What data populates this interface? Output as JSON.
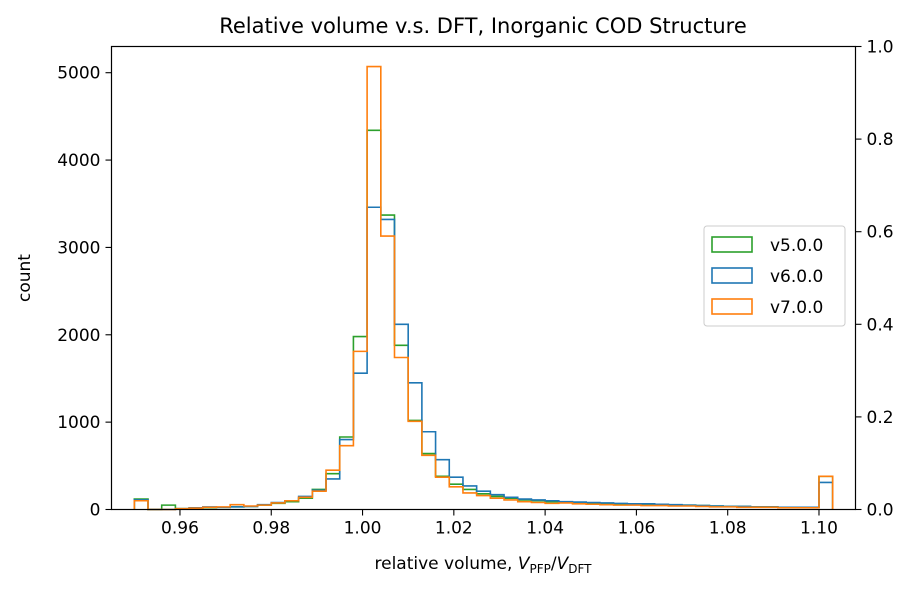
{
  "chart_data": {
    "type": "histogram-step",
    "title": "Relative volume v.s. DFT, Inorganic COD Structure",
    "xlabel": {
      "prefix": "relative volume, ",
      "v1": "V",
      "s1": "PFP",
      "slash": "/",
      "v2": "V",
      "s2": "DFT"
    },
    "ylabel": "count",
    "xlim": [
      0.945,
      1.108
    ],
    "ylim": [
      0,
      5300
    ],
    "y2lim": [
      0,
      1.0
    ],
    "xticks": [
      0.96,
      0.98,
      1.0,
      1.02,
      1.04,
      1.06,
      1.08,
      1.1
    ],
    "xtick_labels": [
      "0.96",
      "0.98",
      "1.00",
      "1.02",
      "1.04",
      "1.06",
      "1.08",
      "1.10"
    ],
    "yticks": [
      0,
      1000,
      2000,
      3000,
      4000,
      5000
    ],
    "ytick_labels": [
      "0",
      "1000",
      "2000",
      "3000",
      "4000",
      "5000"
    ],
    "y2ticks": [
      0,
      0.2,
      0.4,
      0.6,
      0.8,
      1.0
    ],
    "y2tick_labels": [
      "0.0",
      "0.2",
      "0.4",
      "0.6",
      "0.8",
      "1.0"
    ],
    "bin_start": 0.95,
    "bin_width": 0.003,
    "series": [
      {
        "name": "v5.0.0",
        "color": "#2ca02c",
        "values": [
          120,
          0,
          50,
          10,
          15,
          20,
          25,
          30,
          35,
          50,
          70,
          90,
          130,
          230,
          410,
          830,
          1980,
          4340,
          3370,
          1880,
          1020,
          640,
          380,
          290,
          230,
          180,
          150,
          130,
          110,
          100,
          90,
          80,
          70,
          65,
          60,
          60,
          55,
          55,
          55,
          50,
          50,
          45,
          40,
          35,
          35,
          30,
          30,
          25,
          25,
          25,
          380
        ]
      },
      {
        "name": "v6.0.0",
        "color": "#1f77b4",
        "values": [
          110,
          0,
          0,
          10,
          20,
          30,
          25,
          30,
          35,
          55,
          80,
          100,
          150,
          220,
          350,
          800,
          1560,
          3460,
          3320,
          2120,
          1450,
          890,
          570,
          370,
          270,
          210,
          170,
          140,
          120,
          110,
          100,
          90,
          85,
          80,
          75,
          70,
          65,
          65,
          60,
          55,
          50,
          45,
          40,
          35,
          35,
          30,
          30,
          25,
          25,
          25,
          310
        ]
      },
      {
        "name": "v7.0.0",
        "color": "#ff7f0e",
        "values": [
          100,
          0,
          0,
          10,
          15,
          25,
          30,
          55,
          40,
          50,
          75,
          100,
          140,
          210,
          450,
          730,
          1810,
          5070,
          3130,
          1740,
          1010,
          620,
          370,
          260,
          190,
          160,
          130,
          110,
          90,
          80,
          70,
          75,
          65,
          60,
          55,
          50,
          50,
          45,
          45,
          40,
          40,
          35,
          30,
          30,
          25,
          25,
          25,
          20,
          20,
          20,
          380
        ]
      }
    ],
    "legend_position": "center-right",
    "grid": false
  }
}
